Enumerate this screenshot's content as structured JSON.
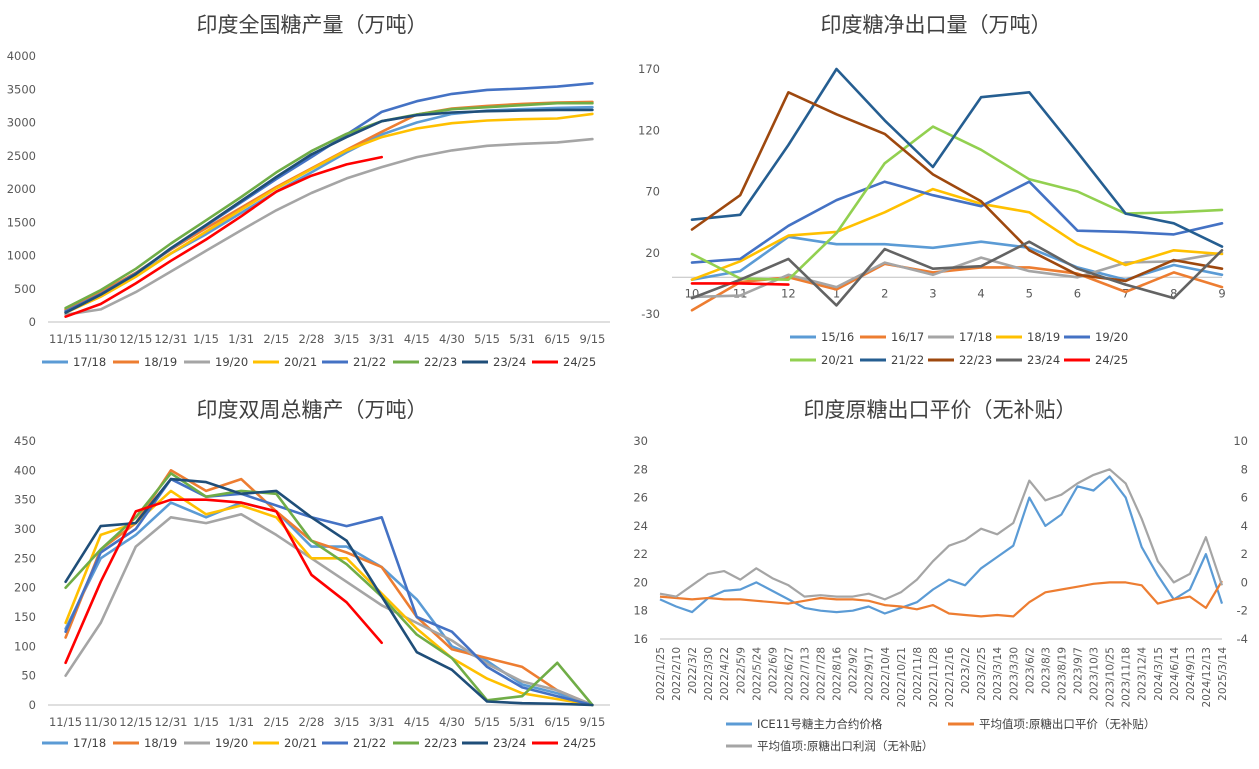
{
  "colors": {
    "15/16": "#5B9BD5",
    "16/17": "#ED7D31",
    "17/18": "#A5A5A5",
    "18/19": "#FFC000",
    "19/20": "#4472C4",
    "20/21": "#92D050",
    "21/22": "#255E91",
    "22/23": "#9E480E",
    "23/24": "#636363",
    "24/25": "#FF0000"
  },
  "chart_data": [
    {
      "id": "production",
      "type": "line",
      "title": "印度全国糖产量（万吨）",
      "categories": [
        "11/15",
        "11/30",
        "12/15",
        "12/31",
        "1/15",
        "1/31",
        "2/15",
        "2/28",
        "3/15",
        "3/31",
        "4/15",
        "4/30",
        "5/15",
        "5/31",
        "6/15",
        "9/15"
      ],
      "ylim": [
        0,
        4000
      ],
      "yticks": [
        0,
        500,
        1000,
        1500,
        2000,
        2500,
        3000,
        3500,
        4000
      ],
      "legend_position": "bottom",
      "series": [
        {
          "name": "17/18",
          "color": "#5B9BD5",
          "values": [
            170,
            420,
            700,
            1030,
            1320,
            1640,
            1960,
            2250,
            2550,
            2820,
            3000,
            3130,
            3180,
            3200,
            3220,
            3230
          ]
        },
        {
          "name": "18/19",
          "color": "#ED7D31",
          "values": [
            190,
            450,
            740,
            1090,
            1410,
            1720,
            2030,
            2310,
            2590,
            2860,
            3120,
            3210,
            3250,
            3280,
            3300,
            3310
          ]
        },
        {
          "name": "19/20",
          "color": "#A5A5A5",
          "values": [
            110,
            190,
            450,
            760,
            1070,
            1380,
            1680,
            1940,
            2160,
            2330,
            2480,
            2580,
            2650,
            2680,
            2700,
            2750
          ]
        },
        {
          "name": "20/21",
          "color": "#FFC000",
          "values": [
            140,
            380,
            680,
            1030,
            1360,
            1690,
            2010,
            2300,
            2580,
            2780,
            2910,
            2990,
            3030,
            3050,
            3060,
            3130
          ]
        },
        {
          "name": "21/22",
          "color": "#4472C4",
          "values": [
            160,
            420,
            730,
            1100,
            1450,
            1800,
            2150,
            2480,
            2820,
            3160,
            3320,
            3430,
            3490,
            3510,
            3540,
            3590
          ]
        },
        {
          "name": "22/23",
          "color": "#70AD47",
          "values": [
            210,
            480,
            800,
            1180,
            1530,
            1880,
            2250,
            2570,
            2830,
            3020,
            3120,
            3200,
            3230,
            3260,
            3290,
            3290
          ]
        },
        {
          "name": "23/24",
          "color": "#1F4E79",
          "values": [
            140,
            410,
            720,
            1110,
            1460,
            1820,
            2180,
            2520,
            2780,
            3020,
            3110,
            3150,
            3170,
            3180,
            3190,
            3190
          ]
        },
        {
          "name": "24/25",
          "color": "#FF0000",
          "values": [
            80,
            270,
            580,
            920,
            1240,
            1590,
            1960,
            2200,
            2370,
            2480,
            null,
            null,
            null,
            null,
            null,
            null
          ]
        }
      ]
    },
    {
      "id": "net_export",
      "type": "line",
      "title": "印度糖净出口量（万吨）",
      "categories": [
        "10",
        "11",
        "12",
        "1",
        "2",
        "3",
        "4",
        "5",
        "6",
        "7",
        "8",
        "9"
      ],
      "ylim": [
        -30,
        170
      ],
      "yticks": [
        -30,
        20,
        70,
        120,
        170
      ],
      "legend_position": "bottom",
      "series": [
        {
          "name": "15/16",
          "color": "#5B9BD5",
          "values": [
            -2,
            5,
            33,
            27,
            27,
            24,
            29,
            24,
            8,
            -2,
            10,
            2
          ]
        },
        {
          "name": "16/17",
          "color": "#ED7D31",
          "values": [
            -27,
            -4,
            0,
            -10,
            11,
            4,
            8,
            8,
            3,
            -12,
            4,
            -8
          ]
        },
        {
          "name": "17/18",
          "color": "#A5A5A5",
          "values": [
            -16,
            -15,
            2,
            -8,
            12,
            2,
            16,
            5,
            0,
            12,
            13,
            20
          ]
        },
        {
          "name": "18/19",
          "color": "#FFC000",
          "values": [
            -2,
            13,
            34,
            37,
            53,
            72,
            60,
            53,
            27,
            10,
            22,
            19
          ]
        },
        {
          "name": "19/20",
          "color": "#4472C4",
          "values": [
            12,
            15,
            42,
            63,
            78,
            67,
            58,
            78,
            38,
            37,
            35,
            44
          ]
        },
        {
          "name": "20/21",
          "color": "#92D050",
          "values": [
            19,
            -1,
            -2,
            36,
            93,
            123,
            104,
            80,
            70,
            52,
            53,
            55
          ]
        },
        {
          "name": "21/22",
          "color": "#255E91",
          "values": [
            47,
            51,
            108,
            170,
            128,
            90,
            147,
            151,
            102,
            52,
            44,
            25
          ]
        },
        {
          "name": "22/23",
          "color": "#9E480E",
          "values": [
            39,
            67,
            151,
            133,
            117,
            84,
            62,
            22,
            2,
            -3,
            14,
            7
          ]
        },
        {
          "name": "23/24",
          "color": "#636363",
          "values": [
            -17,
            -2,
            15,
            -23,
            23,
            7,
            9,
            29,
            7,
            -6,
            -17,
            22
          ]
        },
        {
          "name": "24/25",
          "color": "#FF0000",
          "values": [
            -5,
            -5,
            -6,
            null,
            null,
            null,
            null,
            null,
            null,
            null,
            null,
            null
          ]
        }
      ]
    },
    {
      "id": "biweekly",
      "type": "line",
      "title": "印度双周总糖产（万吨）",
      "categories": [
        "11/15",
        "11/30",
        "12/15",
        "12/31",
        "1/15",
        "1/31",
        "2/15",
        "2/28",
        "3/15",
        "3/31",
        "4/15",
        "4/30",
        "5/15",
        "5/31",
        "6/15",
        "9/15"
      ],
      "ylim": [
        0,
        450
      ],
      "yticks": [
        0,
        50,
        100,
        150,
        200,
        250,
        300,
        350,
        400,
        450
      ],
      "legend_position": "bottom",
      "series": [
        {
          "name": "17/18",
          "color": "#5B9BD5",
          "values": [
            130,
            250,
            290,
            345,
            320,
            345,
            330,
            270,
            270,
            235,
            180,
            100,
            75,
            35,
            20,
            0
          ]
        },
        {
          "name": "18/19",
          "color": "#ED7D31",
          "values": [
            115,
            265,
            310,
            400,
            365,
            385,
            330,
            280,
            260,
            235,
            150,
            95,
            80,
            65,
            25,
            0
          ]
        },
        {
          "name": "19/20",
          "color": "#A5A5A5",
          "values": [
            50,
            140,
            270,
            320,
            310,
            325,
            290,
            250,
            210,
            170,
            140,
            110,
            70,
            40,
            25,
            0
          ]
        },
        {
          "name": "20/21",
          "color": "#FFC000",
          "values": [
            140,
            290,
            310,
            365,
            325,
            340,
            320,
            250,
            250,
            190,
            130,
            80,
            45,
            20,
            10,
            0
          ]
        },
        {
          "name": "21/22",
          "color": "#4472C4",
          "values": [
            125,
            260,
            300,
            385,
            355,
            360,
            340,
            320,
            305,
            320,
            150,
            125,
            65,
            30,
            15,
            0
          ]
        },
        {
          "name": "22/23",
          "color": "#70AD47",
          "values": [
            200,
            265,
            320,
            395,
            355,
            365,
            360,
            280,
            240,
            185,
            120,
            80,
            8,
            15,
            72,
            0
          ]
        },
        {
          "name": "23/24",
          "color": "#1F4E79",
          "values": [
            210,
            305,
            310,
            385,
            380,
            360,
            365,
            320,
            280,
            185,
            90,
            60,
            6,
            3,
            2,
            0
          ]
        },
        {
          "name": "24/25",
          "color": "#FF0000",
          "values": [
            72,
            210,
            330,
            350,
            350,
            345,
            330,
            222,
            175,
            106,
            null,
            null,
            null,
            null,
            null,
            null
          ]
        }
      ]
    },
    {
      "id": "raw_export_price",
      "type": "line",
      "title": "印度原糖出口平价（无补贴）",
      "x_labels": [
        "2022/1/25",
        "2022/2/10",
        "2022/3/2",
        "2022/3/30",
        "2022/4/22",
        "2022/5/9",
        "2022/5/24",
        "2022/6/9",
        "2022/6/27",
        "2022/7/13",
        "2022/7/28",
        "2022/8/16",
        "2022/9/2",
        "2022/9/17",
        "2022/10/4",
        "2022/10/21",
        "2022/11/8",
        "2022/11/28",
        "2022/12/16",
        "2023/2/2",
        "2023/2/25",
        "2023/3/14",
        "2023/3/30",
        "2023/6/2",
        "2023/8/3",
        "2023/8/19",
        "2023/9/7",
        "2023/10/3",
        "2023/10/25",
        "2023/11/18",
        "2023/12/4",
        "2024/3/15",
        "2024/6/14",
        "2024/9/13",
        "2024/12/13",
        "2025/3/14"
      ],
      "ylim_left": [
        16,
        30
      ],
      "yticks_left": [
        16,
        18,
        20,
        22,
        24,
        26,
        28,
        30
      ],
      "ylim_right": [
        -4,
        10
      ],
      "yticks_right": [
        -4,
        -2,
        0,
        2,
        4,
        6,
        8,
        10
      ],
      "legend_position": "bottom",
      "series": [
        {
          "name": "ICE11号糖主力合约价格",
          "color": "#5B9BD5",
          "axis": "left",
          "values": [
            18.8,
            18.3,
            17.9,
            18.9,
            19.4,
            19.5,
            20.0,
            19.4,
            18.8,
            18.2,
            18.0,
            17.9,
            18.0,
            18.3,
            17.8,
            18.2,
            18.6,
            19.5,
            20.2,
            19.8,
            21.0,
            21.8,
            22.6,
            26.0,
            24.0,
            24.8,
            26.8,
            26.5,
            27.5,
            26.0,
            22.5,
            20.5,
            18.8,
            19.5,
            22.0,
            18.5
          ]
        },
        {
          "name": "平均值项:原糖出口平价（无补贴）",
          "color": "#ED7D31",
          "axis": "right",
          "values": [
            -1.0,
            -1.1,
            -1.2,
            -1.1,
            -1.2,
            -1.2,
            -1.3,
            -1.4,
            -1.5,
            -1.3,
            -1.1,
            -1.2,
            -1.2,
            -1.3,
            -1.6,
            -1.7,
            -1.9,
            -1.6,
            -2.2,
            -2.3,
            -2.4,
            -2.3,
            -2.4,
            -1.4,
            -0.7,
            -0.5,
            -0.3,
            -0.1,
            0.0,
            0.0,
            -0.2,
            -1.5,
            -1.2,
            -1.0,
            -1.8,
            0.1
          ]
        },
        {
          "name": "平均值项:原糖出口利润（无补贴）",
          "color": "#A5A5A5",
          "axis": "left",
          "values": [
            19.2,
            19.0,
            19.8,
            20.6,
            20.8,
            20.2,
            21.0,
            20.3,
            19.8,
            19.0,
            19.1,
            19.0,
            19.0,
            19.2,
            18.8,
            19.3,
            20.2,
            21.5,
            22.6,
            23.0,
            23.8,
            23.4,
            24.2,
            27.2,
            25.8,
            26.2,
            27.0,
            27.6,
            28.0,
            27.0,
            24.5,
            21.5,
            20.0,
            20.6,
            23.2,
            19.8
          ]
        }
      ]
    }
  ]
}
